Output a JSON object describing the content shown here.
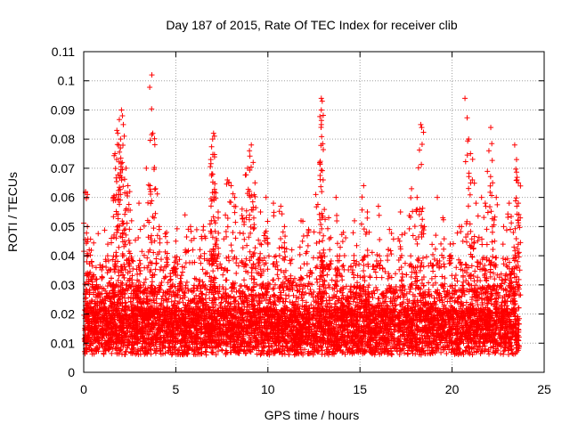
{
  "chart_data": {
    "type": "scatter",
    "title": "Day 187 of 2015, Rate Of TEC Index for receiver clib",
    "xlabel": "GPS time / hours",
    "ylabel": "ROTI / TECUs",
    "xlim": [
      0,
      25
    ],
    "ylim": [
      0,
      0.11
    ],
    "x_ticks": [
      "0",
      "5",
      "10",
      "15",
      "20",
      "25"
    ],
    "y_ticks": [
      "0",
      "0.01",
      "0.02",
      "0.03",
      "0.04",
      "0.05",
      "0.06",
      "0.07",
      "0.08",
      "0.09",
      "0.1",
      "0.11"
    ],
    "grid": true,
    "marker": "+",
    "color": "#ff0000",
    "series": [
      {
        "points": [
          [
            0.1,
            0.012
          ],
          [
            0.1,
            0.062
          ],
          [
            0.2,
            0.061
          ],
          [
            0.2,
            0.05
          ],
          [
            0.3,
            0.042
          ],
          [
            0.5,
            0.033
          ],
          [
            0.7,
            0.032
          ],
          [
            1.0,
            0.036
          ],
          [
            1.3,
            0.04
          ],
          [
            1.5,
            0.046
          ],
          [
            1.6,
            0.06
          ],
          [
            1.7,
            0.075
          ],
          [
            1.8,
            0.083
          ],
          [
            1.85,
            0.082
          ],
          [
            1.9,
            0.078
          ],
          [
            2.0,
            0.08
          ],
          [
            2.05,
            0.09
          ],
          [
            2.1,
            0.088
          ],
          [
            2.15,
            0.085
          ],
          [
            2.2,
            0.081
          ],
          [
            2.3,
            0.07
          ],
          [
            2.4,
            0.064
          ],
          [
            2.5,
            0.062
          ],
          [
            2.6,
            0.052
          ],
          [
            3.0,
            0.058
          ],
          [
            3.4,
            0.07
          ],
          [
            3.6,
            0.064
          ],
          [
            3.7,
            0.102
          ],
          [
            3.75,
            0.082
          ],
          [
            3.9,
            0.063
          ],
          [
            4.1,
            0.05
          ],
          [
            4.5,
            0.048
          ],
          [
            5.0,
            0.045
          ],
          [
            5.5,
            0.054
          ],
          [
            5.8,
            0.05
          ],
          [
            6.5,
            0.05
          ],
          [
            6.9,
            0.073
          ],
          [
            7.0,
            0.08
          ],
          [
            7.05,
            0.082
          ],
          [
            7.1,
            0.081
          ],
          [
            7.0,
            0.068
          ],
          [
            7.1,
            0.062
          ],
          [
            7.3,
            0.055
          ],
          [
            7.8,
            0.066
          ],
          [
            8.0,
            0.064
          ],
          [
            8.2,
            0.06
          ],
          [
            8.6,
            0.056
          ],
          [
            8.9,
            0.07
          ],
          [
            9.0,
            0.076
          ],
          [
            9.1,
            0.078
          ],
          [
            9.2,
            0.072
          ],
          [
            9.3,
            0.065
          ],
          [
            9.6,
            0.055
          ],
          [
            9.9,
            0.06
          ],
          [
            10.3,
            0.058
          ],
          [
            10.7,
            0.057
          ],
          [
            10.9,
            0.05
          ],
          [
            11.3,
            0.042
          ],
          [
            11.8,
            0.052
          ],
          [
            12.2,
            0.048
          ],
          [
            12.6,
            0.061
          ],
          [
            12.9,
            0.094
          ],
          [
            12.95,
            0.093
          ],
          [
            12.9,
            0.09
          ],
          [
            12.9,
            0.085
          ],
          [
            13.0,
            0.066
          ],
          [
            13.3,
            0.053
          ],
          [
            13.7,
            0.06
          ],
          [
            14.1,
            0.048
          ],
          [
            14.7,
            0.052
          ],
          [
            15.2,
            0.064
          ],
          [
            15.4,
            0.055
          ],
          [
            16.0,
            0.057
          ],
          [
            16.6,
            0.049
          ],
          [
            17.2,
            0.055
          ],
          [
            17.8,
            0.063
          ],
          [
            18.1,
            0.06
          ],
          [
            18.3,
            0.085
          ],
          [
            18.35,
            0.084
          ],
          [
            18.5,
            0.05
          ],
          [
            19.2,
            0.06
          ],
          [
            19.5,
            0.053
          ],
          [
            19.9,
            0.044
          ],
          [
            20.4,
            0.05
          ],
          [
            20.7,
            0.094
          ],
          [
            20.9,
            0.08
          ],
          [
            21.0,
            0.075
          ],
          [
            21.1,
            0.066
          ],
          [
            21.3,
            0.058
          ],
          [
            21.6,
            0.06
          ],
          [
            21.8,
            0.058
          ],
          [
            22.0,
            0.076
          ],
          [
            22.1,
            0.084
          ],
          [
            22.2,
            0.065
          ],
          [
            22.4,
            0.06
          ],
          [
            22.8,
            0.05
          ],
          [
            23.1,
            0.058
          ],
          [
            23.4,
            0.078
          ],
          [
            23.5,
            0.073
          ],
          [
            23.6,
            0.065
          ],
          [
            23.6,
            0.058
          ]
        ]
      }
    ]
  }
}
